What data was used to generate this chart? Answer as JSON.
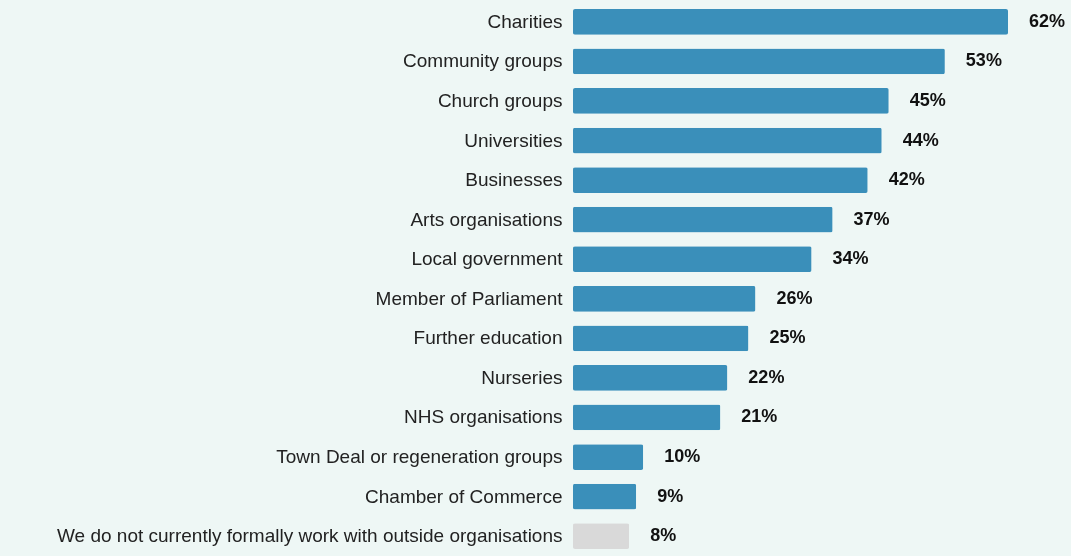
{
  "chart_data": {
    "type": "bar",
    "orientation": "horizontal",
    "categories": [
      "Charities",
      "Community groups",
      "Church groups",
      "Universities",
      "Businesses",
      "Arts organisations",
      "Local government",
      "Member of Parliament",
      "Further education",
      "Nurseries",
      "NHS organisations",
      "Town Deal or regeneration groups",
      "Chamber of Commerce",
      "We do not currently formally work with outside organisations"
    ],
    "values": [
      62,
      53,
      45,
      44,
      42,
      37,
      34,
      26,
      25,
      22,
      21,
      10,
      9,
      8
    ],
    "value_labels": [
      "62%",
      "53%",
      "45%",
      "44%",
      "42%",
      "37%",
      "34%",
      "26%",
      "25%",
      "22%",
      "21%",
      "10%",
      "9%",
      "8%"
    ],
    "colors": [
      "#3a8fba",
      "#3a8fba",
      "#3a8fba",
      "#3a8fba",
      "#3a8fba",
      "#3a8fba",
      "#3a8fba",
      "#3a8fba",
      "#3a8fba",
      "#3a8fba",
      "#3a8fba",
      "#3a8fba",
      "#3a8fba",
      "#d9d9d9"
    ]
  }
}
